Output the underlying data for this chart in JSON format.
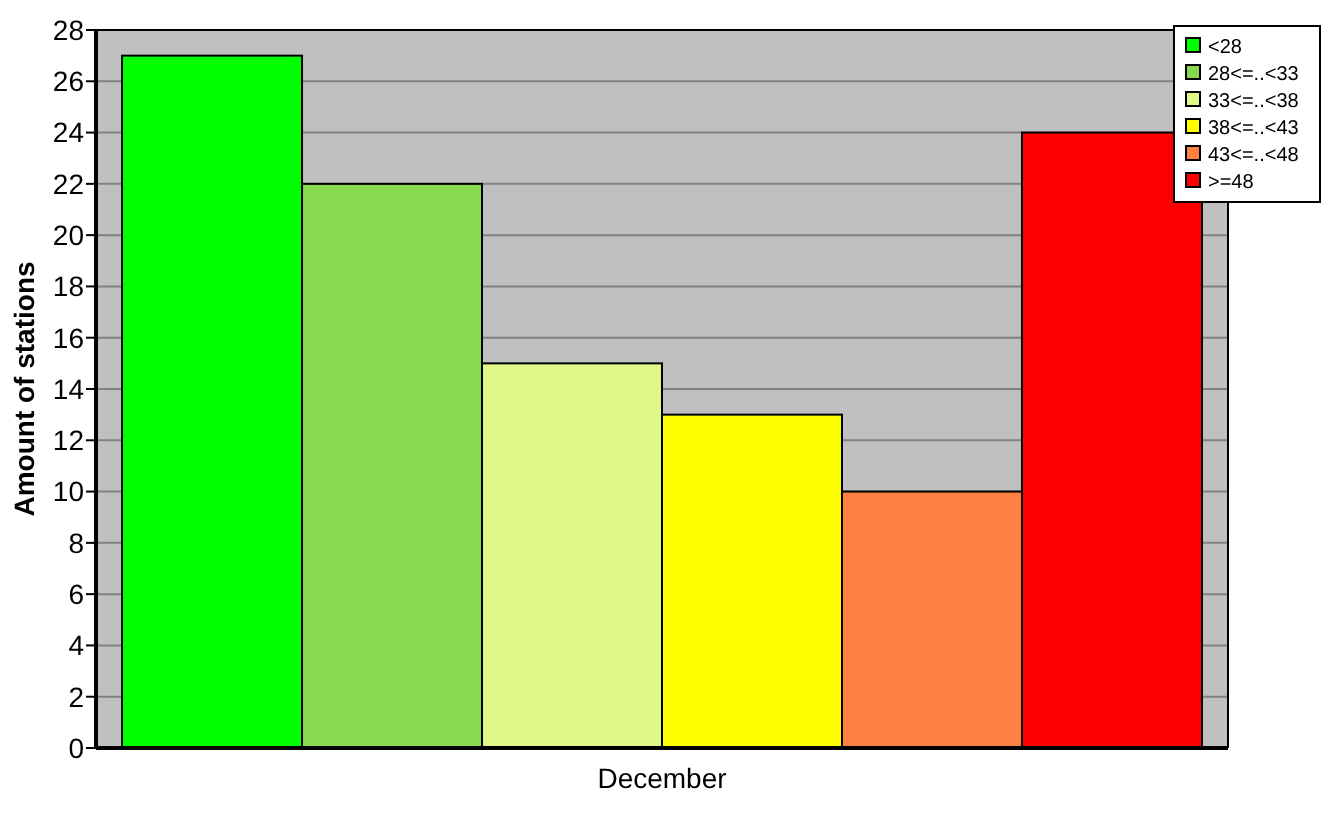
{
  "chart_data": {
    "type": "bar",
    "categories": [
      "December"
    ],
    "ylabel": "Amount of stations",
    "ylim": [
      0,
      28
    ],
    "yticks": [
      0,
      2,
      4,
      6,
      8,
      10,
      12,
      14,
      16,
      18,
      20,
      22,
      24,
      26,
      28
    ],
    "grid": "y",
    "legend": "top right",
    "series": [
      {
        "name": "<28",
        "color": "#00ff00",
        "values": [
          27
        ]
      },
      {
        "name": "28<=..<33",
        "color": "#88d850",
        "values": [
          22
        ]
      },
      {
        "name": "33<=..<38",
        "color": "#e0f888",
        "values": [
          15
        ]
      },
      {
        "name": "38<=..<43",
        "color": "#ffff00",
        "values": [
          13
        ]
      },
      {
        "name": "43<=..<48",
        "color": "#ff8040",
        "values": [
          10
        ]
      },
      {
        "name": ">=48",
        "color": "#ff0000",
        "values": [
          24
        ]
      }
    ]
  }
}
